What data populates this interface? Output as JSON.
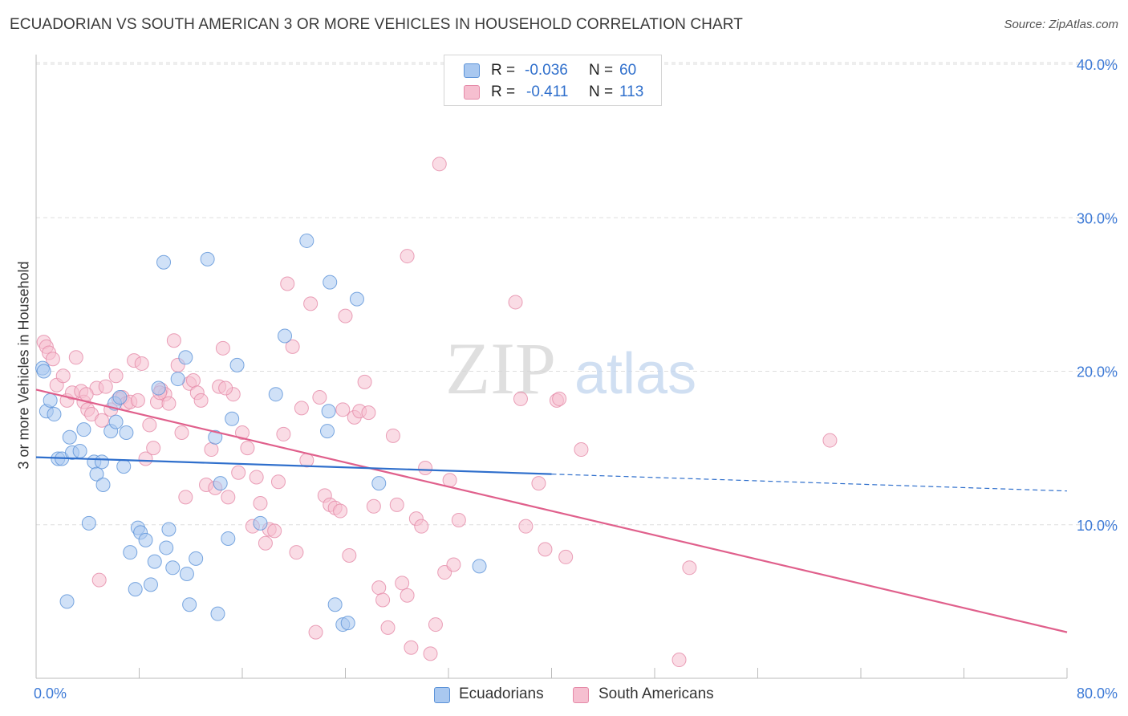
{
  "title": "ECUADORIAN VS SOUTH AMERICAN 3 OR MORE VEHICLES IN HOUSEHOLD CORRELATION CHART",
  "source": "Source: ZipAtlas.com",
  "watermark": {
    "zip": "ZIP",
    "atlas": "atlas"
  },
  "legend": {
    "series1": {
      "r_label": "R =",
      "r_value": "-0.036",
      "n_label": "N =",
      "n_value": "60"
    },
    "series2": {
      "r_label": "R =",
      "r_value": "-0.411",
      "n_label": "N =",
      "n_value": "113"
    }
  },
  "bottom_legend": {
    "series1": "Ecuadorians",
    "series2": "South Americans"
  },
  "colors": {
    "series1_fill": "#a9c8f0",
    "series1_stroke": "#5b92d8",
    "series1_line": "#2f6fcc",
    "series2_fill": "#f6bfd0",
    "series2_stroke": "#e58aa8",
    "series2_line": "#e0608c",
    "axis_label": "#3d7ad6",
    "grid": "#dddddd"
  },
  "chart_data": {
    "type": "scatter",
    "title": "ECUADORIAN VS SOUTH AMERICAN 3 OR MORE VEHICLES IN HOUSEHOLD CORRELATION CHART",
    "xlabel": "",
    "ylabel": "3 or more Vehicles in Household",
    "xlim": [
      0,
      80
    ],
    "ylim": [
      0,
      40
    ],
    "x_tick_labels": [
      "0.0%",
      "80.0%"
    ],
    "y_ticks": [
      10,
      20,
      30,
      40
    ],
    "y_tick_labels": [
      "10.0%",
      "20.0%",
      "30.0%",
      "40.0%"
    ],
    "grid": "horizontal dashed",
    "legend_position": "top-center",
    "series": [
      {
        "name": "Ecuadorians",
        "trend": {
          "x": [
            0,
            40
          ],
          "y": [
            14.4,
            13.3
          ],
          "dashed_to": [
            80,
            12.2
          ]
        },
        "points": [
          [
            0.5,
            20.2
          ],
          [
            0.6,
            20.0
          ],
          [
            0.8,
            17.4
          ],
          [
            1.1,
            18.1
          ],
          [
            1.4,
            17.2
          ],
          [
            1.7,
            14.3
          ],
          [
            2.0,
            14.3
          ],
          [
            2.6,
            15.7
          ],
          [
            2.8,
            14.7
          ],
          [
            3.4,
            14.8
          ],
          [
            3.7,
            16.2
          ],
          [
            4.1,
            10.1
          ],
          [
            4.5,
            14.1
          ],
          [
            4.7,
            13.3
          ],
          [
            5.1,
            14.1
          ],
          [
            5.2,
            12.6
          ],
          [
            5.8,
            16.1
          ],
          [
            6.1,
            17.9
          ],
          [
            6.2,
            16.7
          ],
          [
            6.5,
            18.3
          ],
          [
            6.8,
            13.8
          ],
          [
            7.0,
            16.0
          ],
          [
            7.3,
            8.2
          ],
          [
            7.7,
            5.8
          ],
          [
            7.9,
            9.8
          ],
          [
            8.1,
            9.5
          ],
          [
            8.5,
            9.0
          ],
          [
            8.9,
            6.1
          ],
          [
            9.2,
            7.6
          ],
          [
            9.5,
            18.9
          ],
          [
            9.9,
            27.1
          ],
          [
            10.1,
            8.5
          ],
          [
            10.3,
            9.7
          ],
          [
            10.6,
            7.2
          ],
          [
            11.0,
            19.5
          ],
          [
            11.6,
            20.9
          ],
          [
            11.7,
            6.8
          ],
          [
            11.9,
            4.8
          ],
          [
            12.4,
            7.8
          ],
          [
            13.3,
            27.3
          ],
          [
            13.9,
            15.7
          ],
          [
            14.3,
            12.7
          ],
          [
            14.9,
            9.1
          ],
          [
            15.2,
            16.9
          ],
          [
            15.6,
            20.4
          ],
          [
            17.4,
            10.1
          ],
          [
            18.6,
            18.5
          ],
          [
            19.3,
            22.3
          ],
          [
            21.0,
            28.5
          ],
          [
            22.6,
            16.1
          ],
          [
            22.7,
            17.4
          ],
          [
            22.8,
            25.8
          ],
          [
            23.2,
            4.8
          ],
          [
            23.8,
            3.5
          ],
          [
            24.2,
            3.6
          ],
          [
            24.9,
            24.7
          ],
          [
            26.6,
            12.7
          ],
          [
            34.4,
            7.3
          ],
          [
            14.1,
            4.2
          ],
          [
            2.4,
            5.0
          ]
        ]
      },
      {
        "name": "South Americans",
        "trend": {
          "x": [
            0,
            80
          ],
          "y": [
            18.8,
            3.0
          ]
        },
        "points": [
          [
            0.6,
            21.9
          ],
          [
            0.8,
            21.6
          ],
          [
            1.0,
            21.2
          ],
          [
            1.3,
            20.8
          ],
          [
            1.6,
            19.1
          ],
          [
            2.1,
            19.7
          ],
          [
            2.4,
            18.1
          ],
          [
            2.8,
            18.6
          ],
          [
            3.1,
            20.9
          ],
          [
            3.5,
            18.7
          ],
          [
            3.7,
            18.0
          ],
          [
            4.0,
            17.5
          ],
          [
            4.3,
            17.2
          ],
          [
            4.7,
            18.9
          ],
          [
            4.9,
            6.4
          ],
          [
            5.1,
            16.8
          ],
          [
            5.4,
            19.0
          ],
          [
            5.8,
            17.5
          ],
          [
            6.2,
            19.7
          ],
          [
            6.4,
            18.2
          ],
          [
            6.7,
            18.3
          ],
          [
            7.0,
            17.9
          ],
          [
            7.3,
            18.0
          ],
          [
            7.6,
            20.7
          ],
          [
            7.9,
            18.1
          ],
          [
            8.2,
            20.5
          ],
          [
            8.5,
            14.3
          ],
          [
            8.8,
            16.5
          ],
          [
            9.1,
            15.0
          ],
          [
            9.4,
            18.0
          ],
          [
            9.7,
            18.8
          ],
          [
            10.0,
            18.5
          ],
          [
            10.3,
            17.9
          ],
          [
            10.7,
            22.0
          ],
          [
            11.0,
            20.4
          ],
          [
            11.3,
            16.0
          ],
          [
            11.6,
            11.8
          ],
          [
            11.9,
            19.2
          ],
          [
            12.2,
            19.4
          ],
          [
            12.5,
            18.6
          ],
          [
            12.8,
            18.1
          ],
          [
            13.2,
            12.6
          ],
          [
            13.6,
            14.9
          ],
          [
            13.9,
            12.4
          ],
          [
            14.2,
            19.0
          ],
          [
            14.5,
            21.5
          ],
          [
            14.9,
            11.8
          ],
          [
            15.3,
            18.5
          ],
          [
            15.7,
            13.4
          ],
          [
            16.0,
            16.0
          ],
          [
            16.4,
            15.0
          ],
          [
            16.8,
            9.9
          ],
          [
            17.1,
            13.1
          ],
          [
            17.4,
            11.4
          ],
          [
            17.8,
            8.8
          ],
          [
            18.1,
            9.7
          ],
          [
            18.5,
            9.6
          ],
          [
            18.8,
            12.8
          ],
          [
            19.2,
            15.9
          ],
          [
            19.5,
            25.7
          ],
          [
            19.9,
            21.6
          ],
          [
            20.2,
            8.2
          ],
          [
            20.6,
            17.6
          ],
          [
            21.0,
            14.2
          ],
          [
            21.3,
            24.4
          ],
          [
            21.7,
            3.0
          ],
          [
            22.0,
            18.3
          ],
          [
            22.4,
            11.9
          ],
          [
            22.8,
            11.3
          ],
          [
            23.2,
            11.1
          ],
          [
            23.6,
            10.9
          ],
          [
            24.0,
            23.6
          ],
          [
            24.3,
            8.0
          ],
          [
            24.7,
            17.0
          ],
          [
            25.1,
            17.4
          ],
          [
            25.5,
            19.3
          ],
          [
            25.8,
            17.3
          ],
          [
            26.2,
            11.2
          ],
          [
            26.6,
            5.9
          ],
          [
            26.9,
            5.1
          ],
          [
            27.3,
            3.3
          ],
          [
            27.7,
            15.8
          ],
          [
            28.0,
            11.3
          ],
          [
            28.4,
            6.2
          ],
          [
            28.8,
            5.4
          ],
          [
            29.1,
            2.0
          ],
          [
            29.5,
            10.4
          ],
          [
            29.9,
            9.9
          ],
          [
            30.2,
            13.7
          ],
          [
            30.6,
            1.6
          ],
          [
            31.0,
            3.5
          ],
          [
            31.3,
            33.5
          ],
          [
            31.7,
            6.9
          ],
          [
            32.1,
            12.9
          ],
          [
            32.4,
            7.4
          ],
          [
            32.8,
            10.3
          ],
          [
            37.2,
            24.5
          ],
          [
            37.6,
            18.2
          ],
          [
            38.0,
            9.9
          ],
          [
            39.0,
            12.7
          ],
          [
            39.5,
            8.4
          ],
          [
            40.4,
            18.1
          ],
          [
            40.6,
            18.2
          ],
          [
            41.1,
            7.9
          ],
          [
            42.3,
            14.9
          ],
          [
            49.9,
            1.2
          ],
          [
            50.7,
            7.2
          ],
          [
            61.6,
            15.5
          ],
          [
            28.8,
            27.5
          ],
          [
            14.7,
            18.9
          ],
          [
            3.9,
            18.5
          ],
          [
            23.8,
            17.5
          ],
          [
            9.6,
            18.6
          ]
        ]
      }
    ]
  }
}
